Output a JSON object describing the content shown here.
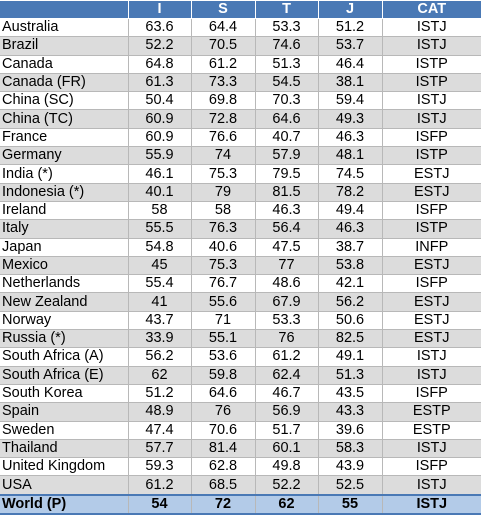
{
  "table": {
    "columns": [
      "",
      "I",
      "S",
      "T",
      "J",
      "CAT"
    ],
    "rows": [
      {
        "country": "Australia",
        "I": "63.6",
        "S": "64.4",
        "T": "53.3",
        "J": "51.2",
        "CAT": "ISTJ"
      },
      {
        "country": "Brazil",
        "I": "52.2",
        "S": "70.5",
        "T": "74.6",
        "J": "53.7",
        "CAT": "ISTJ"
      },
      {
        "country": "Canada",
        "I": "64.8",
        "S": "61.2",
        "T": "51.3",
        "J": "46.4",
        "CAT": "ISTP"
      },
      {
        "country": "Canada (FR)",
        "I": "61.3",
        "S": "73.3",
        "T": "54.5",
        "J": "38.1",
        "CAT": "ISTP"
      },
      {
        "country": "China (SC)",
        "I": "50.4",
        "S": "69.8",
        "T": "70.3",
        "J": "59.4",
        "CAT": "ISTJ"
      },
      {
        "country": "China (TC)",
        "I": "60.9",
        "S": "72.8",
        "T": "64.6",
        "J": "49.3",
        "CAT": "ISTJ"
      },
      {
        "country": "France",
        "I": "60.9",
        "S": "76.6",
        "T": "40.7",
        "J": "46.3",
        "CAT": "ISFP"
      },
      {
        "country": "Germany",
        "I": "55.9",
        "S": "74",
        "T": "57.9",
        "J": "48.1",
        "CAT": "ISTP"
      },
      {
        "country": "India (*)",
        "I": "46.1",
        "S": "75.3",
        "T": "79.5",
        "J": "74.5",
        "CAT": "ESTJ"
      },
      {
        "country": "Indonesia (*)",
        "I": "40.1",
        "S": "79",
        "T": "81.5",
        "J": "78.2",
        "CAT": "ESTJ"
      },
      {
        "country": "Ireland",
        "I": "58",
        "S": "58",
        "T": "46.3",
        "J": "49.4",
        "CAT": "ISFP"
      },
      {
        "country": "Italy",
        "I": "55.5",
        "S": "76.3",
        "T": "56.4",
        "J": "46.3",
        "CAT": "ISTP"
      },
      {
        "country": "Japan",
        "I": "54.8",
        "S": "40.6",
        "T": "47.5",
        "J": "38.7",
        "CAT": "INFP"
      },
      {
        "country": "Mexico",
        "I": "45",
        "S": "75.3",
        "T": "77",
        "J": "53.8",
        "CAT": "ESTJ"
      },
      {
        "country": "Netherlands",
        "I": "55.4",
        "S": "76.7",
        "T": "48.6",
        "J": "42.1",
        "CAT": "ISFP"
      },
      {
        "country": "New Zealand",
        "I": "41",
        "S": "55.6",
        "T": "67.9",
        "J": "56.2",
        "CAT": "ESTJ"
      },
      {
        "country": "Norway",
        "I": "43.7",
        "S": "71",
        "T": "53.3",
        "J": "50.6",
        "CAT": "ESTJ"
      },
      {
        "country": "Russia (*)",
        "I": "33.9",
        "S": "55.1",
        "T": "76",
        "J": "82.5",
        "CAT": "ESTJ"
      },
      {
        "country": "South Africa (A)",
        "I": "56.2",
        "S": "53.6",
        "T": "61.2",
        "J": "49.1",
        "CAT": "ISTJ"
      },
      {
        "country": "South Africa (E)",
        "I": "62",
        "S": "59.8",
        "T": "62.4",
        "J": "51.3",
        "CAT": "ISTJ"
      },
      {
        "country": "South Korea",
        "I": "51.2",
        "S": "64.6",
        "T": "46.7",
        "J": "43.5",
        "CAT": "ISFP"
      },
      {
        "country": "Spain",
        "I": "48.9",
        "S": "76",
        "T": "56.9",
        "J": "43.3",
        "CAT": "ESTP"
      },
      {
        "country": "Sweden",
        "I": "47.4",
        "S": "70.6",
        "T": "51.7",
        "J": "39.6",
        "CAT": "ESTP"
      },
      {
        "country": "Thailand",
        "I": "57.7",
        "S": "81.4",
        "T": "60.1",
        "J": "58.3",
        "CAT": "ISTJ"
      },
      {
        "country": "United Kingdom",
        "I": "59.3",
        "S": "62.8",
        "T": "49.8",
        "J": "43.9",
        "CAT": "ISFP"
      },
      {
        "country": "USA",
        "I": "61.2",
        "S": "68.5",
        "T": "52.2",
        "J": "52.5",
        "CAT": "ISTJ"
      }
    ],
    "total": {
      "country": "World (P)",
      "I": "54",
      "S": "72",
      "T": "62",
      "J": "55",
      "CAT": "ISTJ"
    }
  },
  "colors": {
    "header_bg": "#4a79b5",
    "header_text": "#ffffff",
    "row_alt": "#dcdcdc",
    "total_bg": "#b3cbe8"
  }
}
